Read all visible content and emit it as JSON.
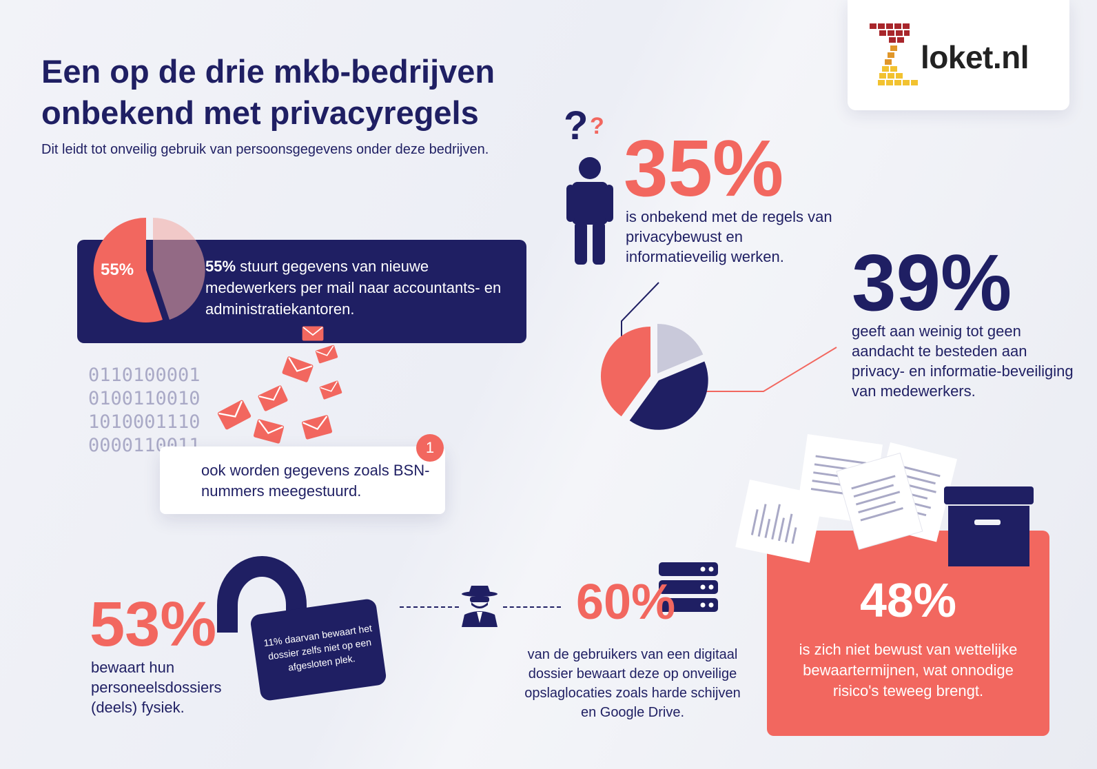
{
  "header": {
    "title": "Een op de drie mkb-bedrijven onbekend met privacyregels",
    "subtitle": "Dit leidt tot onveilig gebruik van persoonsgegevens onder deze bedrijven."
  },
  "logo": {
    "text": "loket.nl"
  },
  "stat35": {
    "value": "35%",
    "description": "is onbekend met de regels van privacybewust en informatieveilig werken."
  },
  "stat39": {
    "value": "39%",
    "description": "geeft aan weinig tot geen aandacht te besteden aan privacy- en informatie-beveiliging van medewerkers."
  },
  "stat55": {
    "label": "55%",
    "bold": "55%",
    "text": " stuurt gegevens van nieuwe medewerkers per mail naar accountants- en administratiekantoren."
  },
  "binary": [
    "0110100001",
    "0100110010",
    "1010001110",
    "0000110011"
  ],
  "bsn": {
    "badge": "1",
    "text": "ook worden gegevens zoals BSN-nummers meegestuurd."
  },
  "stat53": {
    "value": "53%",
    "description": "bewaart hun personeelsdossiers (deels) fysiek.",
    "lock_note": "11% daarvan bewaart het dossier zelfs niet op een afgesloten plek."
  },
  "stat60": {
    "value": "60%",
    "description": "van de gebruikers van een digitaal dossier bewaart deze op onveilige opslaglocaties zoals harde schijven en Google Drive."
  },
  "stat48": {
    "value": "48%",
    "description": "is zich niet bewust van wettelijke bewaartermijnen, wat onnodige risico's teweeg brengt."
  },
  "colors": {
    "navy": "#1f1f63",
    "coral": "#f2675f",
    "light": "#c9c9da"
  },
  "icons": [
    "question-marks-icon",
    "person-icon",
    "envelope-icon",
    "padlock-icon",
    "spy-icon",
    "server-icon",
    "documents-icon",
    "archive-box-icon"
  ]
}
